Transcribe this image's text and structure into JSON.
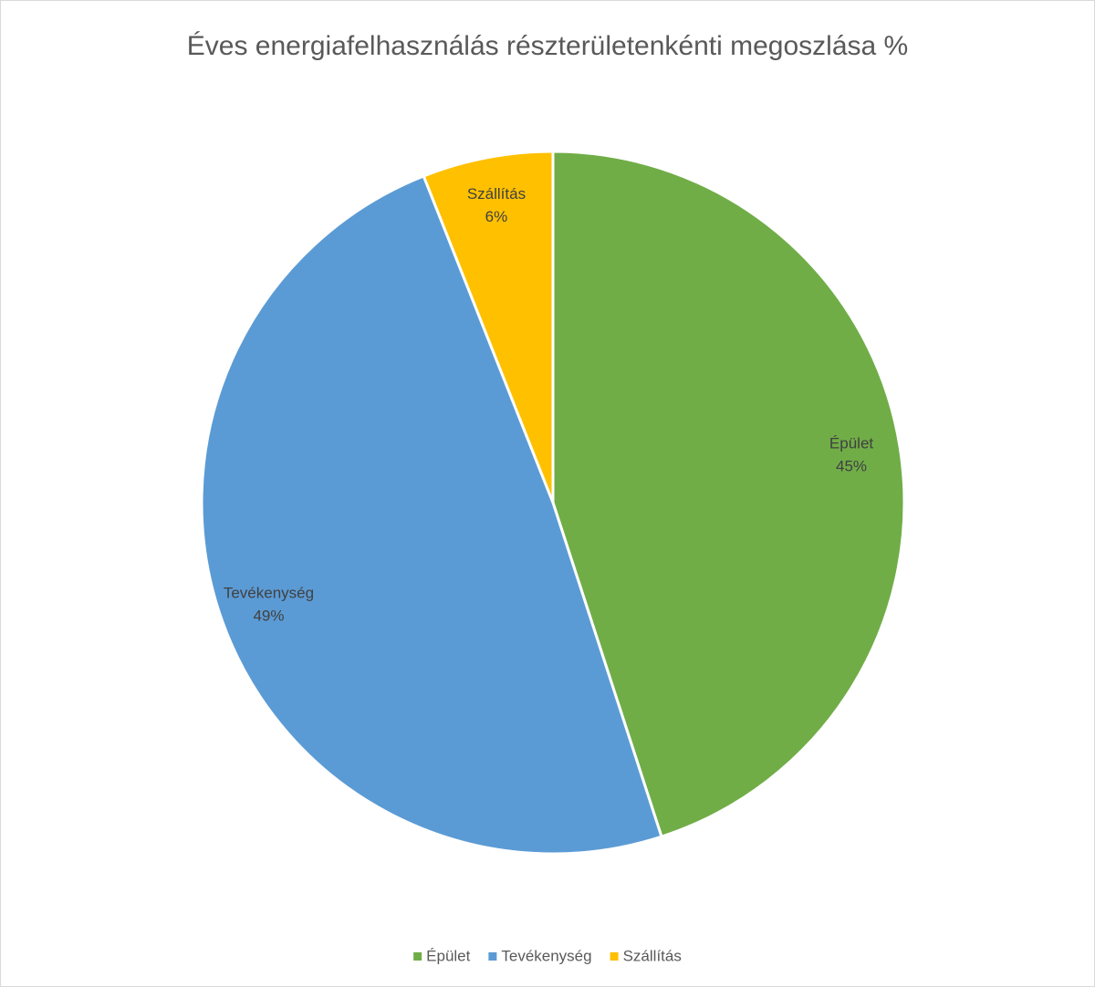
{
  "chart_data": {
    "type": "pie",
    "title": "Éves energiafelhasználás részterületenkénti megoszlása %",
    "categories": [
      "Épület",
      "Tevékenység",
      "Szállítás"
    ],
    "values": [
      45,
      49,
      6
    ],
    "value_labels": [
      "45%",
      "49%",
      "6%"
    ],
    "colors": [
      "#70ad47",
      "#5b9bd5",
      "#ffc000"
    ],
    "legend": "bottom"
  }
}
